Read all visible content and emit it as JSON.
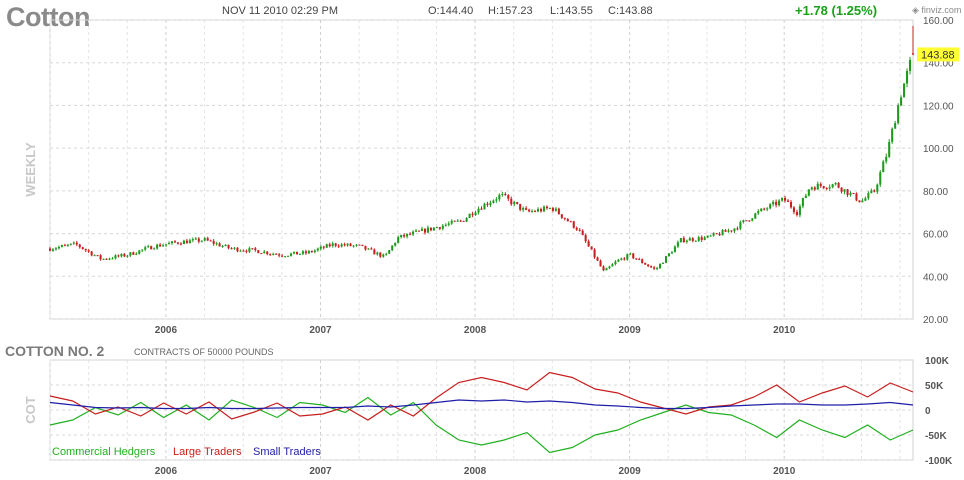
{
  "header": {
    "symbol": "Cotton",
    "datetime": "NOV 11 2010 02:29 PM",
    "open": "O:144.40",
    "high": "H:157.23",
    "low": "L:143.55",
    "close": "C:143.88",
    "change": "+1.78 (1.25%)",
    "logo": "finviz.com"
  },
  "lower_panel": {
    "name": "COTTON NO. 2",
    "subtitle": "CONTRACTS OF 50000 POUNDS"
  },
  "colors": {
    "up": "#1f9a1f",
    "down": "#c82020",
    "commercial": "#22b022",
    "large": "#c81e1e",
    "small": "#1e1ea8",
    "last_price_bg": "#ffff33"
  },
  "chart_data": [
    {
      "type": "candlestick",
      "ylabel": "WEEKLY",
      "x_ticks": [
        "2006",
        "2007",
        "2008",
        "2009",
        "2010"
      ],
      "y_ticks": [
        "160.00",
        "140.00",
        "120.00",
        "100.00",
        "80.00",
        "60.00",
        "40.00",
        "20.00"
      ],
      "ylim": [
        20,
        160
      ],
      "last_price": "143.88",
      "x_range": [
        "2005-04",
        "2010-11"
      ],
      "anchors": [
        [
          "2005-04",
          53
        ],
        [
          "2005-06",
          55
        ],
        [
          "2005-08",
          48
        ],
        [
          "2005-10",
          50
        ],
        [
          "2005-12",
          54
        ],
        [
          "2006-02",
          56
        ],
        [
          "2006-04",
          57
        ],
        [
          "2006-06",
          53
        ],
        [
          "2006-08",
          52
        ],
        [
          "2006-10",
          50
        ],
        [
          "2006-12",
          51
        ],
        [
          "2007-02",
          55
        ],
        [
          "2007-04",
          54
        ],
        [
          "2007-06",
          49
        ],
        [
          "2007-07",
          58
        ],
        [
          "2007-10",
          63
        ],
        [
          "2007-12",
          66
        ],
        [
          "2008-01",
          71
        ],
        [
          "2008-03",
          78
        ],
        [
          "2008-05",
          70
        ],
        [
          "2008-07",
          72
        ],
        [
          "2008-09",
          62
        ],
        [
          "2008-11",
          42
        ],
        [
          "2008-12",
          47
        ],
        [
          "2009-01",
          50
        ],
        [
          "2009-03",
          43
        ],
        [
          "2009-05",
          57
        ],
        [
          "2009-07",
          58
        ],
        [
          "2009-09",
          62
        ],
        [
          "2009-11",
          70
        ],
        [
          "2010-01",
          76
        ],
        [
          "2010-02",
          70
        ],
        [
          "2010-03",
          82
        ],
        [
          "2010-05",
          83
        ],
        [
          "2010-07",
          75
        ],
        [
          "2010-08",
          80
        ],
        [
          "2010-09",
          98
        ],
        [
          "2010-10",
          124
        ],
        [
          "2010-11",
          143.88
        ]
      ]
    },
    {
      "type": "line",
      "ylabel": "COT",
      "x_ticks": [
        "2006",
        "2007",
        "2008",
        "2009",
        "2010"
      ],
      "y_ticks": [
        "100K",
        "50K",
        "0",
        "-50K",
        "-100K"
      ],
      "ylim": [
        -100000,
        100000
      ],
      "x_range": [
        "2005-04",
        "2010-11"
      ],
      "series": [
        {
          "name": "Commercial Hedgers",
          "values": [
            -30000,
            -20000,
            5000,
            -10000,
            15000,
            -15000,
            10000,
            -20000,
            20000,
            5000,
            -15000,
            15000,
            10000,
            -5000,
            25000,
            -10000,
            15000,
            -30000,
            -60000,
            -70000,
            -60000,
            -45000,
            -85000,
            -75000,
            -50000,
            -40000,
            -20000,
            -5000,
            10000,
            -5000,
            -10000,
            -30000,
            -55000,
            -20000,
            -40000,
            -55000,
            -30000,
            -60000,
            -40000
          ]
        },
        {
          "name": "Large Traders",
          "values": [
            28000,
            18000,
            -8000,
            6000,
            -12000,
            14000,
            -8000,
            16000,
            -18000,
            -4000,
            14000,
            -12000,
            -8000,
            6000,
            -20000,
            10000,
            -12000,
            24000,
            55000,
            65000,
            55000,
            40000,
            75000,
            65000,
            42000,
            34000,
            16000,
            4000,
            -8000,
            6000,
            10000,
            26000,
            50000,
            16000,
            34000,
            48000,
            26000,
            54000,
            36000
          ]
        },
        {
          "name": "Small Traders",
          "values": [
            15000,
            10000,
            5000,
            4000,
            5000,
            3000,
            3000,
            5000,
            3000,
            3000,
            4000,
            5000,
            5000,
            5000,
            8000,
            6000,
            10000,
            15000,
            20000,
            18000,
            20000,
            16000,
            18000,
            15000,
            10000,
            8000,
            5000,
            3000,
            3000,
            5000,
            8000,
            10000,
            12000,
            12000,
            10000,
            10000,
            12000,
            15000,
            10000
          ]
        }
      ]
    }
  ]
}
